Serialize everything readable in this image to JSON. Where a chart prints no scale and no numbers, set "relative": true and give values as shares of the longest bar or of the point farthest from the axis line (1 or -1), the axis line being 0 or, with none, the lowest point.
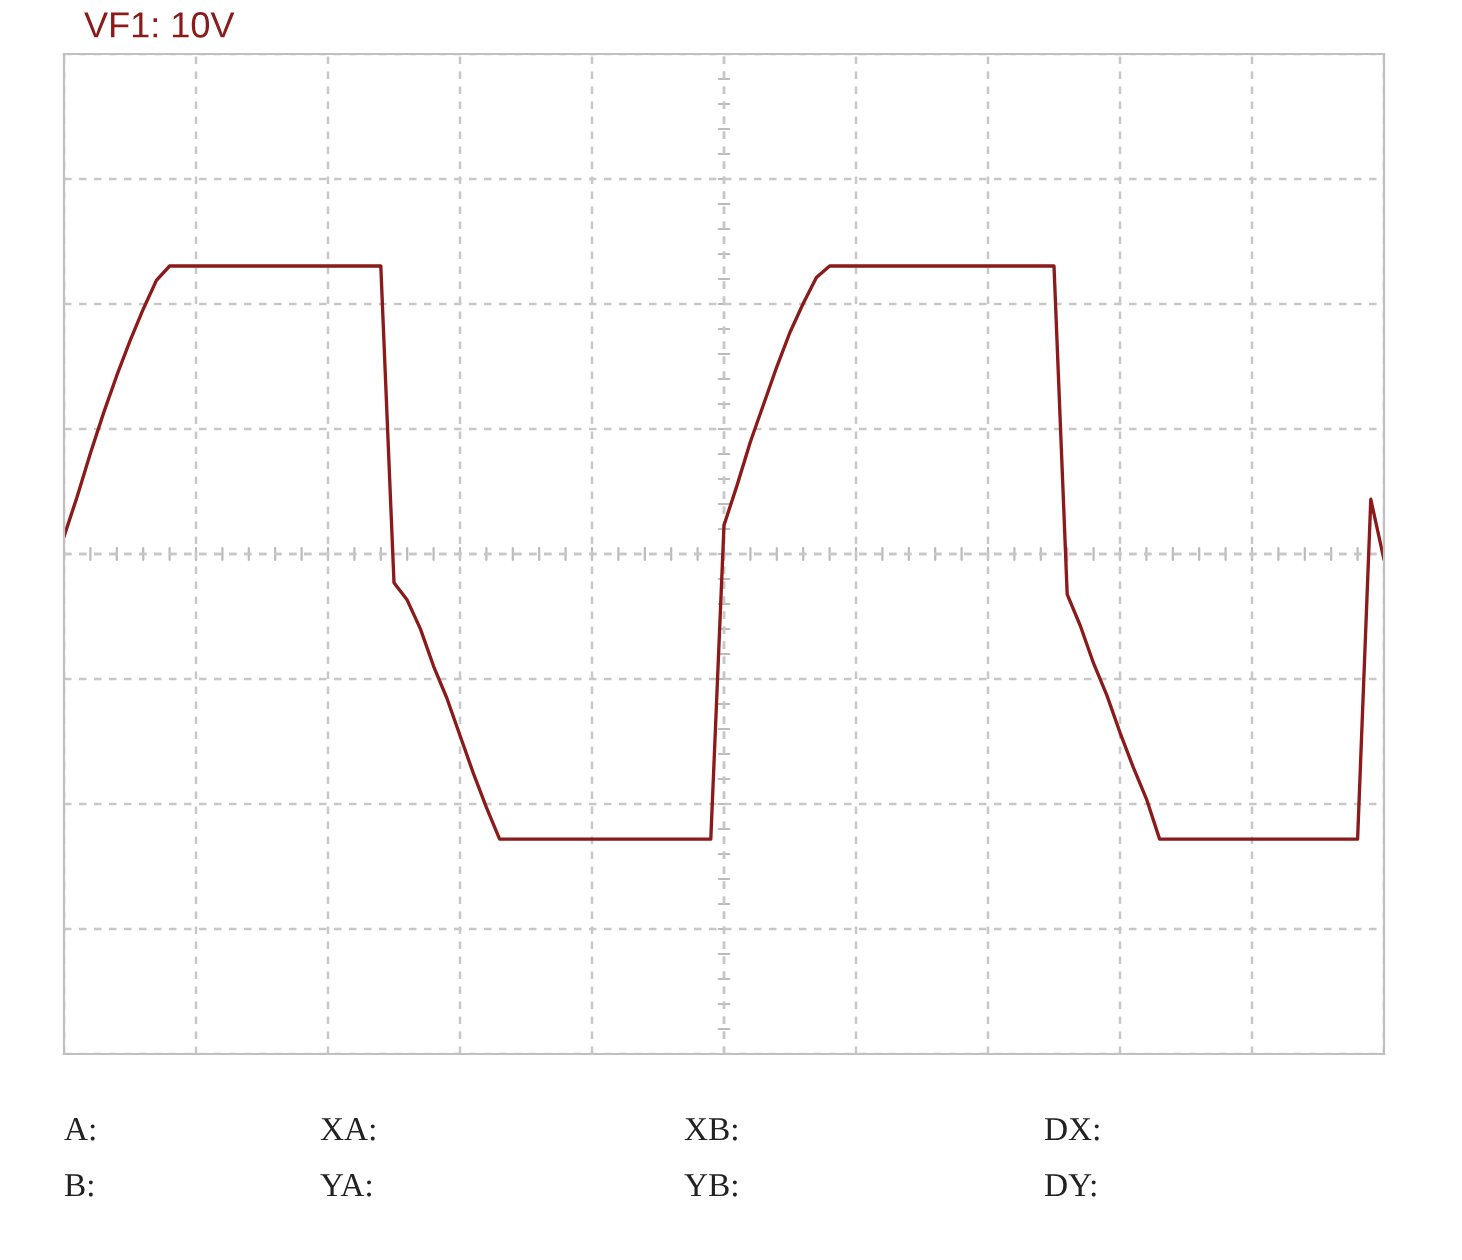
{
  "chart_data": {
    "type": "line",
    "title": "VF1: 10V",
    "relative": true,
    "grid": true,
    "legend": false,
    "marker": "none",
    "line_style": "solid",
    "categories": [
      null,
      null,
      null,
      null,
      null,
      null,
      null,
      null,
      null,
      null,
      null,
      null,
      null,
      null,
      null,
      null,
      null,
      null,
      null,
      null,
      null,
      null,
      null,
      null,
      null,
      null,
      null,
      null,
      null,
      null,
      null,
      null,
      null,
      null,
      null,
      null,
      null,
      null,
      null,
      null,
      null,
      null,
      null,
      null,
      null,
      null,
      null,
      null,
      null,
      null,
      null,
      null,
      null,
      null,
      null,
      null,
      null,
      null,
      null,
      null,
      null,
      null,
      null,
      null,
      null,
      null,
      null,
      null,
      null,
      null,
      null,
      null,
      null,
      null,
      null,
      null,
      null,
      null,
      null,
      null,
      null,
      null,
      null,
      null,
      null,
      null,
      null,
      null,
      null,
      null,
      null,
      null,
      null,
      null,
      null,
      null,
      null,
      null,
      null,
      null,
      null
    ],
    "series": [
      {
        "color": "#8b1a1a",
        "values": [
          0.06,
          0.2,
          0.35,
          0.49,
          0.62,
          0.74,
          0.85,
          0.95,
          1,
          1,
          1,
          1,
          1,
          1,
          1,
          1,
          1,
          1,
          1,
          1,
          1,
          1,
          1,
          1,
          1,
          -0.1,
          -0.16,
          -0.26,
          -0.39,
          -0.5,
          -0.63,
          -0.76,
          -0.88,
          -0.99,
          -0.99,
          -0.99,
          -0.99,
          -0.99,
          -0.99,
          -0.99,
          -0.99,
          -0.99,
          -0.99,
          -0.99,
          -0.99,
          -0.99,
          -0.99,
          -0.99,
          -0.99,
          -0.99,
          0.1,
          0.24,
          0.39,
          0.52,
          0.65,
          0.77,
          0.87,
          0.96,
          1,
          1,
          1,
          1,
          1,
          1,
          1,
          1,
          1,
          1,
          1,
          1,
          1,
          1,
          1,
          1,
          1,
          1,
          -0.14,
          -0.25,
          -0.38,
          -0.49,
          -0.62,
          -0.74,
          -0.85,
          -0.99,
          -0.99,
          -0.99,
          -0.99,
          -0.99,
          -0.99,
          -0.99,
          -0.99,
          -0.99,
          -0.99,
          -0.99,
          -0.99,
          -0.99,
          -0.99,
          -0.99,
          -0.99,
          0.19,
          -0.02
        ]
      }
    ],
    "annotations": [
      "A:",
      "XA:",
      "XB:",
      "DX:",
      "B:",
      "YA:",
      "YB:",
      "DY:"
    ]
  }
}
